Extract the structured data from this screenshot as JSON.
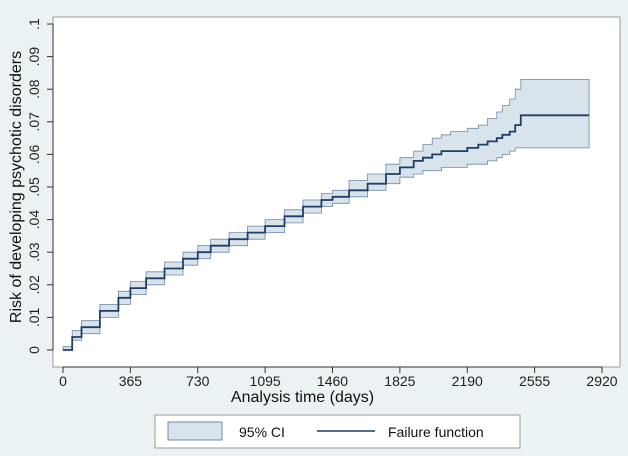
{
  "colors": {
    "background": "#eaf2f3",
    "plot_area": "#ffffff",
    "ci_fill": "#d9e3ec",
    "ci_stroke": "#6f8aa6",
    "line": "#1f3f66"
  },
  "chart_data": {
    "type": "line",
    "xlabel": "Analysis time (days)",
    "ylabel": "Risk of developing psychotic disorders",
    "xlim": [
      0,
      2920
    ],
    "ylim": [
      0,
      0.1
    ],
    "x_ticks": [
      0,
      365,
      730,
      1095,
      1460,
      1825,
      2190,
      2555,
      2920
    ],
    "x_tick_labels": [
      "0",
      "365",
      "730",
      "1095",
      "1460",
      "1825",
      "2190",
      "2555",
      "2920"
    ],
    "y_ticks": [
      0,
      0.01,
      0.02,
      0.03,
      0.04,
      0.05,
      0.06,
      0.07,
      0.08,
      0.09,
      0.1
    ],
    "y_tick_labels": [
      "0",
      ".01",
      ".02",
      ".03",
      ".04",
      ".05",
      ".06",
      ".07",
      ".08",
      ".09",
      ".1"
    ],
    "grid": false,
    "legend_position": "bottom",
    "series": [
      {
        "name": "Failure function",
        "x": [
          0,
          50,
          100,
          200,
          300,
          365,
          450,
          550,
          650,
          730,
          800,
          900,
          1000,
          1095,
          1200,
          1300,
          1400,
          1460,
          1550,
          1650,
          1750,
          1825,
          1900,
          1950,
          2000,
          2050,
          2100,
          2190,
          2250,
          2300,
          2350,
          2380,
          2420,
          2450,
          2480,
          2850
        ],
        "y": [
          0.0,
          0.004,
          0.007,
          0.012,
          0.016,
          0.019,
          0.022,
          0.025,
          0.028,
          0.03,
          0.032,
          0.034,
          0.036,
          0.038,
          0.041,
          0.044,
          0.046,
          0.047,
          0.049,
          0.051,
          0.054,
          0.056,
          0.058,
          0.059,
          0.06,
          0.061,
          0.061,
          0.062,
          0.063,
          0.064,
          0.065,
          0.066,
          0.067,
          0.069,
          0.072,
          0.072
        ]
      }
    ],
    "ci": {
      "name": "95% CI",
      "x": [
        0,
        50,
        100,
        200,
        300,
        365,
        450,
        550,
        650,
        730,
        800,
        900,
        1000,
        1095,
        1200,
        1300,
        1400,
        1460,
        1550,
        1650,
        1750,
        1825,
        1900,
        1950,
        2000,
        2050,
        2100,
        2190,
        2250,
        2300,
        2350,
        2380,
        2420,
        2450,
        2480,
        2850
      ],
      "upper": [
        0.001,
        0.006,
        0.009,
        0.014,
        0.018,
        0.021,
        0.024,
        0.027,
        0.03,
        0.032,
        0.034,
        0.036,
        0.038,
        0.04,
        0.043,
        0.046,
        0.048,
        0.049,
        0.052,
        0.054,
        0.057,
        0.059,
        0.061,
        0.063,
        0.065,
        0.066,
        0.067,
        0.068,
        0.069,
        0.071,
        0.073,
        0.075,
        0.077,
        0.08,
        0.083,
        0.083
      ],
      "lower": [
        0.0,
        0.003,
        0.005,
        0.01,
        0.014,
        0.017,
        0.02,
        0.023,
        0.026,
        0.028,
        0.03,
        0.032,
        0.034,
        0.036,
        0.039,
        0.042,
        0.044,
        0.045,
        0.047,
        0.049,
        0.051,
        0.053,
        0.054,
        0.055,
        0.055,
        0.056,
        0.056,
        0.057,
        0.057,
        0.058,
        0.059,
        0.06,
        0.061,
        0.062,
        0.062,
        0.062
      ]
    },
    "legend": [
      {
        "label": "95% CI",
        "kind": "area"
      },
      {
        "label": "Failure function",
        "kind": "line"
      }
    ]
  }
}
